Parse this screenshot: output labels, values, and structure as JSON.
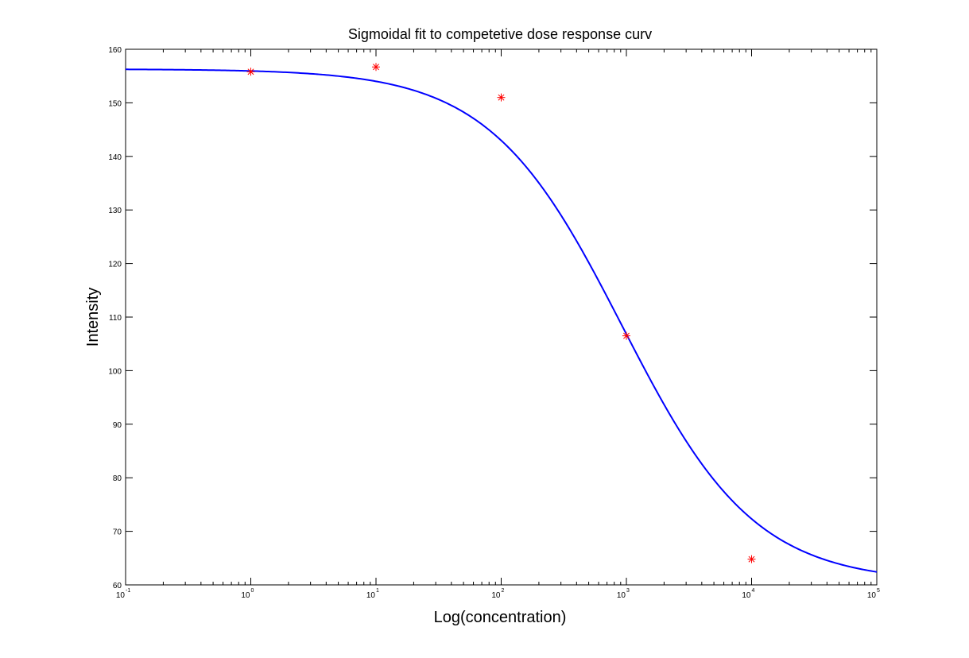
{
  "chart_data": {
    "type": "scatter",
    "title": "Sigmoidal fit to competetive dose response curv",
    "xlabel": "Log(concentration)",
    "ylabel": "Intensity",
    "x_scale": "log",
    "xlim": [
      0.1,
      100000
    ],
    "ylim": [
      60,
      160
    ],
    "x_ticks": [
      {
        "base": "10",
        "exp": "-1",
        "value": 0.1
      },
      {
        "base": "10",
        "exp": "0",
        "value": 1
      },
      {
        "base": "10",
        "exp": "1",
        "value": 10
      },
      {
        "base": "10",
        "exp": "2",
        "value": 100
      },
      {
        "base": "10",
        "exp": "3",
        "value": 1000
      },
      {
        "base": "10",
        "exp": "4",
        "value": 10000
      },
      {
        "base": "10",
        "exp": "5",
        "value": 100000
      }
    ],
    "y_ticks": [
      "60",
      "70",
      "80",
      "90",
      "100",
      "110",
      "120",
      "130",
      "140",
      "150",
      "160"
    ],
    "grid": false,
    "series": [
      {
        "kind": "markers",
        "marker": "asterisk",
        "color": "#ff0000",
        "x": [
          1,
          10,
          100,
          1000,
          10000
        ],
        "y": [
          155.8,
          156.7,
          151.0,
          106.5,
          64.8
        ]
      },
      {
        "kind": "line",
        "color": "#0000ff",
        "fit": {
          "bottom": 60.4,
          "top": 156.3,
          "ec50": 925,
          "hill": 0.82
        }
      }
    ]
  }
}
